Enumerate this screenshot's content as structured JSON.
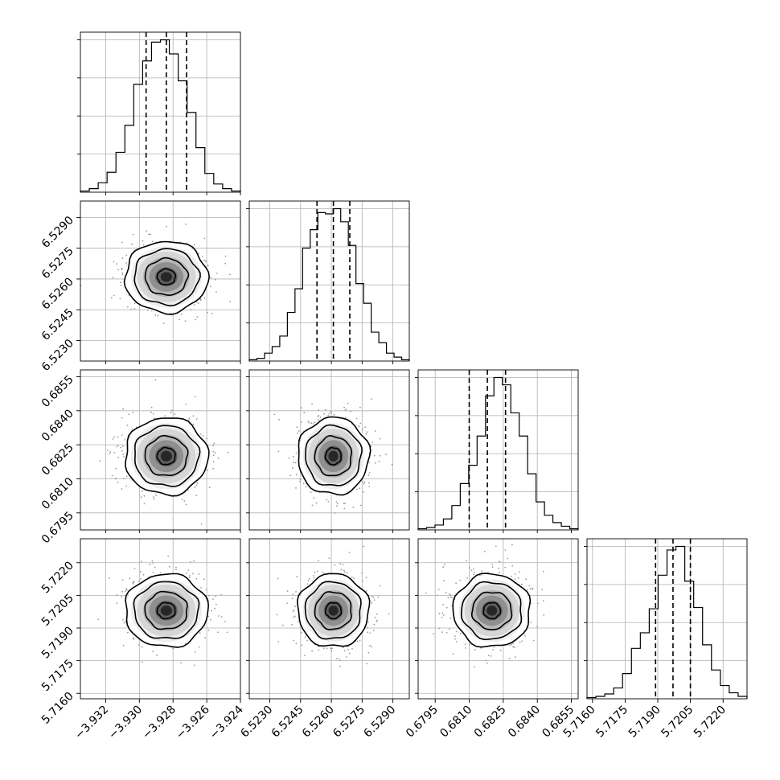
{
  "chart_data": {
    "type": "corner",
    "grid": true,
    "parameters": [
      {
        "range": [
          -3.9335,
          -3.924
        ],
        "ticks": [
          -3.932,
          -3.93,
          -3.928,
          -3.926,
          -3.924
        ],
        "tick_labels": [
          "−3.932",
          "−3.930",
          "−3.928",
          "−3.926",
          "−3.924"
        ],
        "quantiles": [
          -3.9296,
          -3.9284,
          -3.9272
        ],
        "hist_counts": [
          1,
          3,
          8,
          17,
          34,
          57,
          92,
          112,
          128,
          130,
          118,
          95,
          68,
          38,
          16,
          7,
          3,
          1
        ]
      },
      {
        "range": [
          6.522,
          6.5298
        ],
        "ticks": [
          6.523,
          6.5245,
          6.526,
          6.5275,
          6.529
        ],
        "tick_labels": [
          "6.5230",
          "6.5245",
          "6.5260",
          "6.5275",
          "6.5290"
        ],
        "quantiles": [
          6.5253,
          6.5261,
          6.5269
        ],
        "hist_counts": [
          1,
          2,
          6,
          11,
          19,
          37,
          55,
          86,
          100,
          113,
          112,
          116,
          106,
          88,
          59,
          44,
          22,
          14,
          6,
          3,
          1
        ]
      },
      {
        "range": [
          0.67875,
          0.6858
        ],
        "ticks": [
          0.6795,
          0.681,
          0.6825,
          0.684,
          0.6855
        ],
        "tick_labels": [
          "0.6795",
          "0.6810",
          "0.6825",
          "0.6840",
          "0.6855"
        ],
        "quantiles": [
          0.681,
          0.6818,
          0.6826
        ],
        "hist_counts": [
          1,
          2,
          4,
          9,
          20,
          38,
          53,
          77,
          110,
          125,
          119,
          96,
          77,
          46,
          23,
          12,
          6,
          3,
          1
        ]
      },
      {
        "range": [
          5.71575,
          5.7231
        ],
        "ticks": [
          5.716,
          5.7175,
          5.719,
          5.7205,
          5.722
        ],
        "tick_labels": [
          "5.7160",
          "5.7175",
          "5.7190",
          "5.7205",
          "5.7220"
        ],
        "quantiles": [
          5.7189,
          5.7197,
          5.7205
        ],
        "hist_counts": [
          1,
          2,
          4,
          9,
          21,
          42,
          55,
          75,
          103,
          124,
          127,
          98,
          76,
          45,
          24,
          11,
          5,
          2
        ]
      }
    ],
    "pairs": [
      {
        "row": 1,
        "col": 0,
        "mean": [
          -3.9284,
          6.5261
        ],
        "sd": [
          0.0012,
          0.00085
        ]
      },
      {
        "row": 2,
        "col": 0,
        "mean": [
          -3.9284,
          0.682
        ],
        "sd": [
          0.0012,
          0.00083
        ]
      },
      {
        "row": 2,
        "col": 1,
        "mean": [
          6.5261,
          0.682
        ],
        "sd": [
          0.00085,
          0.00083
        ]
      },
      {
        "row": 3,
        "col": 0,
        "mean": [
          -3.9284,
          5.7198
        ],
        "sd": [
          0.0012,
          0.00082
        ]
      },
      {
        "row": 3,
        "col": 1,
        "mean": [
          6.5261,
          5.7198
        ],
        "sd": [
          0.00085,
          0.00082
        ]
      },
      {
        "row": 3,
        "col": 2,
        "mean": [
          0.682,
          5.7198
        ],
        "sd": [
          0.00083,
          0.00082
        ]
      }
    ]
  }
}
